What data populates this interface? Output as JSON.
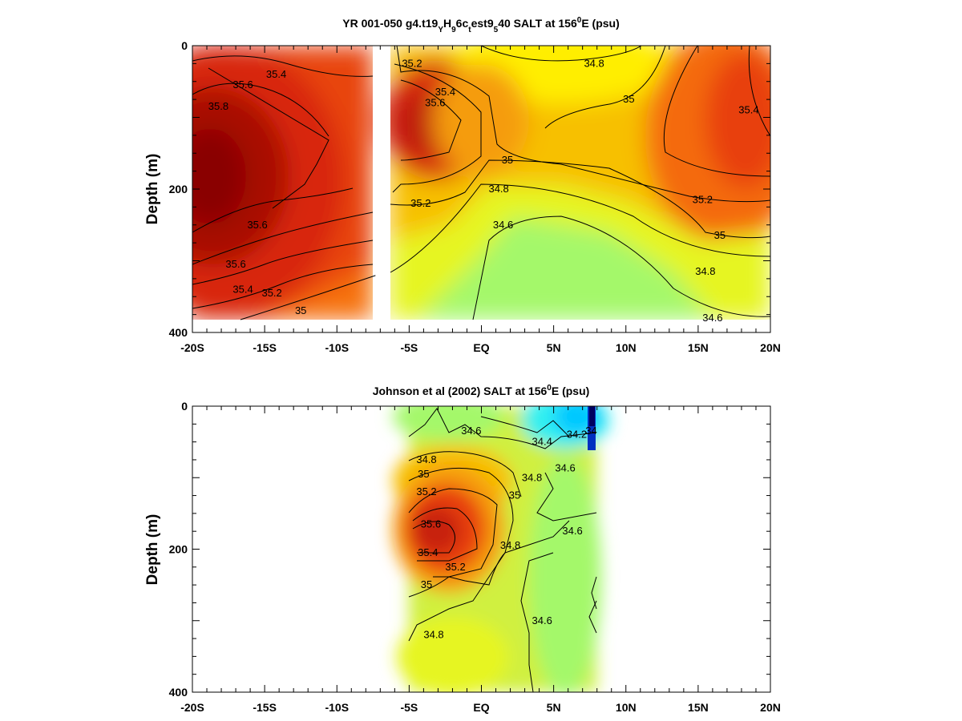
{
  "chart_data": [
    {
      "type": "heatmap",
      "title_parts": [
        "YR 001-050 g4.t19",
        "Y",
        "H",
        "9",
        "6c",
        "t",
        "est9",
        "5",
        "40 SALT at 156",
        "0",
        "E (psu)"
      ],
      "ylabel": "Depth (m)",
      "xlim": [
        -20,
        20
      ],
      "ylim": [
        400,
        0
      ],
      "xticks": [
        {
          "value": -20,
          "label": "-20S"
        },
        {
          "value": -15,
          "label": "-15S"
        },
        {
          "value": -10,
          "label": "-10S"
        },
        {
          "value": -5,
          "label": "-5S"
        },
        {
          "value": 0,
          "label": "EQ"
        },
        {
          "value": 5,
          "label": "5N"
        },
        {
          "value": 10,
          "label": "10N"
        },
        {
          "value": 15,
          "label": "15N"
        },
        {
          "value": 20,
          "label": "20N"
        }
      ],
      "yticks": [
        {
          "value": 0,
          "label": "0"
        },
        {
          "value": 200,
          "label": "200"
        },
        {
          "value": 400,
          "label": "400"
        }
      ],
      "data_extent": {
        "depth_max": 383,
        "gap_lat": [
          -7.3,
          -6.2
        ]
      },
      "contour_labels": [
        {
          "text": "35.4",
          "lat": -14.2,
          "depth": 40
        },
        {
          "text": "35.6",
          "lat": -16.5,
          "depth": 55
        },
        {
          "text": "35.8",
          "lat": -18.2,
          "depth": 85
        },
        {
          "text": "35.6",
          "lat": -15.5,
          "depth": 250
        },
        {
          "text": "35.6",
          "lat": -17.0,
          "depth": 305
        },
        {
          "text": "35.4",
          "lat": -16.5,
          "depth": 340
        },
        {
          "text": "35.2",
          "lat": -14.5,
          "depth": 345
        },
        {
          "text": "35",
          "lat": -12.5,
          "depth": 370
        },
        {
          "text": "35.2",
          "lat": -4.8,
          "depth": 25
        },
        {
          "text": "35.4",
          "lat": -2.5,
          "depth": 65
        },
        {
          "text": "35.6",
          "lat": -3.2,
          "depth": 80
        },
        {
          "text": "34.8",
          "lat": 7.8,
          "depth": 25
        },
        {
          "text": "35",
          "lat": 10.2,
          "depth": 75
        },
        {
          "text": "35.4",
          "lat": 18.5,
          "depth": 90
        },
        {
          "text": "35",
          "lat": 1.8,
          "depth": 160
        },
        {
          "text": "34.8",
          "lat": 1.2,
          "depth": 200
        },
        {
          "text": "35.2",
          "lat": -4.2,
          "depth": 220
        },
        {
          "text": "34.6",
          "lat": 1.5,
          "depth": 250
        },
        {
          "text": "35.2",
          "lat": 15.3,
          "depth": 215
        },
        {
          "text": "35",
          "lat": 16.5,
          "depth": 265
        },
        {
          "text": "34.8",
          "lat": 15.5,
          "depth": 315
        },
        {
          "text": "34.6",
          "lat": 16.0,
          "depth": 380
        }
      ],
      "color_fields": [
        {
          "lat": -20,
          "depth": 0,
          "salt": 35.55
        },
        {
          "lat": -15,
          "depth": 0,
          "salt": 35.45
        },
        {
          "lat": -10,
          "depth": 0,
          "salt": 35.5
        },
        {
          "lat": -7.5,
          "depth": 0,
          "salt": 35.45
        },
        {
          "lat": -6,
          "depth": 0,
          "salt": 35.1
        },
        {
          "lat": -3,
          "depth": 0,
          "salt": 35.05
        },
        {
          "lat": 0,
          "depth": 0,
          "salt": 35.0
        },
        {
          "lat": 5,
          "depth": 0,
          "salt": 34.85
        },
        {
          "lat": 8,
          "depth": 0,
          "salt": 34.75
        },
        {
          "lat": 12,
          "depth": 0,
          "salt": 35.0
        },
        {
          "lat": 17,
          "depth": 0,
          "salt": 35.3
        },
        {
          "lat": 20,
          "depth": 0,
          "salt": 35.55
        },
        {
          "lat": -20,
          "depth": 190,
          "salt": 35.9
        },
        {
          "lat": -17,
          "depth": 185,
          "salt": 35.9
        },
        {
          "lat": -12,
          "depth": 150,
          "salt": 35.7
        },
        {
          "lat": -8,
          "depth": 150,
          "salt": 35.55
        },
        {
          "lat": -3.5,
          "depth": 100,
          "salt": 35.65
        },
        {
          "lat": 0,
          "depth": 100,
          "salt": 35.3
        },
        {
          "lat": 5,
          "depth": 100,
          "salt": 35.05
        },
        {
          "lat": 10,
          "depth": 100,
          "salt": 35.05
        },
        {
          "lat": 16,
          "depth": 150,
          "salt": 35.45
        },
        {
          "lat": 20,
          "depth": 150,
          "salt": 35.45
        },
        {
          "lat": -4,
          "depth": 200,
          "salt": 35.25
        },
        {
          "lat": 0,
          "depth": 200,
          "salt": 34.9
        },
        {
          "lat": 5,
          "depth": 200,
          "salt": 35.0
        },
        {
          "lat": 10,
          "depth": 200,
          "salt": 35.1
        },
        {
          "lat": 20,
          "depth": 230,
          "salt": 35.2
        },
        {
          "lat": -20,
          "depth": 380,
          "salt": 35.6
        },
        {
          "lat": -14,
          "depth": 380,
          "salt": 35.15
        },
        {
          "lat": -8,
          "depth": 380,
          "salt": 35.0
        },
        {
          "lat": -5,
          "depth": 380,
          "salt": 34.85
        },
        {
          "lat": 0,
          "depth": 380,
          "salt": 34.65
        },
        {
          "lat": 5,
          "depth": 380,
          "salt": 34.55
        },
        {
          "lat": 10,
          "depth": 380,
          "salt": 34.55
        },
        {
          "lat": 15,
          "depth": 380,
          "salt": 34.65
        },
        {
          "lat": 20,
          "depth": 380,
          "salt": 34.7
        },
        {
          "lat": 3,
          "depth": 300,
          "salt": 34.55
        },
        {
          "lat": 8,
          "depth": 320,
          "salt": 34.52
        }
      ]
    },
    {
      "type": "heatmap",
      "title_parts": [
        "Johnson et al (2002) SALT at 156",
        "0",
        "E (psu)"
      ],
      "ylabel": "Depth (m)",
      "xlim": [
        -20,
        20
      ],
      "ylim": [
        400,
        0
      ],
      "xticks": [
        {
          "value": -20,
          "label": "-20S"
        },
        {
          "value": -15,
          "label": "-15S"
        },
        {
          "value": -10,
          "label": "-10S"
        },
        {
          "value": -5,
          "label": "-5S"
        },
        {
          "value": 0,
          "label": "EQ"
        },
        {
          "value": 5,
          "label": "5N"
        },
        {
          "value": 10,
          "label": "10N"
        },
        {
          "value": 15,
          "label": "15N"
        },
        {
          "value": 20,
          "label": "20N"
        }
      ],
      "yticks": [
        {
          "value": 0,
          "label": "0"
        },
        {
          "value": 200,
          "label": "200"
        },
        {
          "value": 400,
          "label": "400"
        }
      ],
      "data_extent": {
        "lat_min": -5.1,
        "lat_max": 8.0
      },
      "contour_labels": [
        {
          "text": "34.6",
          "lat": -0.7,
          "depth": 35
        },
        {
          "text": "34.4",
          "lat": 4.2,
          "depth": 50
        },
        {
          "text": "34.2",
          "lat": 6.6,
          "depth": 40
        },
        {
          "text": "34",
          "lat": 7.6,
          "depth": 35
        },
        {
          "text": "34.8",
          "lat": -3.8,
          "depth": 75
        },
        {
          "text": "35",
          "lat": -4.0,
          "depth": 95
        },
        {
          "text": "34.6",
          "lat": 5.8,
          "depth": 87
        },
        {
          "text": "34.8",
          "lat": 3.5,
          "depth": 100
        },
        {
          "text": "35.2",
          "lat": -3.8,
          "depth": 120
        },
        {
          "text": "35",
          "lat": 2.3,
          "depth": 125
        },
        {
          "text": "35.6",
          "lat": -3.5,
          "depth": 165
        },
        {
          "text": "34.6",
          "lat": 6.3,
          "depth": 175
        },
        {
          "text": "34.8",
          "lat": 2.0,
          "depth": 195
        },
        {
          "text": "35.4",
          "lat": -3.7,
          "depth": 205
        },
        {
          "text": "35.2",
          "lat": -1.8,
          "depth": 225
        },
        {
          "text": "35",
          "lat": -3.8,
          "depth": 250
        },
        {
          "text": "34.6",
          "lat": 4.2,
          "depth": 300
        },
        {
          "text": "34.8",
          "lat": -3.3,
          "depth": 320
        }
      ],
      "color_fields": [
        {
          "lat": -5,
          "depth": 0,
          "salt": 34.7
        },
        {
          "lat": -2,
          "depth": 0,
          "salt": 34.65
        },
        {
          "lat": 1,
          "depth": 0,
          "salt": 34.55
        },
        {
          "lat": 4,
          "depth": 0,
          "salt": 34.4
        },
        {
          "lat": 6,
          "depth": 0,
          "salt": 34.15
        },
        {
          "lat": 7.5,
          "depth": 0,
          "salt": 33.6
        },
        {
          "lat": 7.8,
          "depth": 40,
          "salt": 33.9
        },
        {
          "lat": 6,
          "depth": 45,
          "salt": 34.35
        },
        {
          "lat": -5,
          "depth": 80,
          "salt": 35.0
        },
        {
          "lat": -2,
          "depth": 80,
          "salt": 35.05
        },
        {
          "lat": 2,
          "depth": 80,
          "salt": 34.75
        },
        {
          "lat": 6,
          "depth": 90,
          "salt": 34.6
        },
        {
          "lat": -5,
          "depth": 170,
          "salt": 35.55
        },
        {
          "lat": -2.5,
          "depth": 165,
          "salt": 35.65
        },
        {
          "lat": 0,
          "depth": 160,
          "salt": 35.2
        },
        {
          "lat": 3,
          "depth": 170,
          "salt": 34.75
        },
        {
          "lat": 7,
          "depth": 170,
          "salt": 34.6
        },
        {
          "lat": -5,
          "depth": 250,
          "salt": 35.05
        },
        {
          "lat": -1,
          "depth": 240,
          "salt": 35.1
        },
        {
          "lat": 2,
          "depth": 250,
          "salt": 34.7
        },
        {
          "lat": 7,
          "depth": 260,
          "salt": 34.6
        },
        {
          "lat": -5,
          "depth": 400,
          "salt": 34.75
        },
        {
          "lat": -1,
          "depth": 400,
          "salt": 34.75
        },
        {
          "lat": 3,
          "depth": 400,
          "salt": 34.62
        },
        {
          "lat": 7.5,
          "depth": 400,
          "salt": 34.6
        }
      ]
    }
  ]
}
